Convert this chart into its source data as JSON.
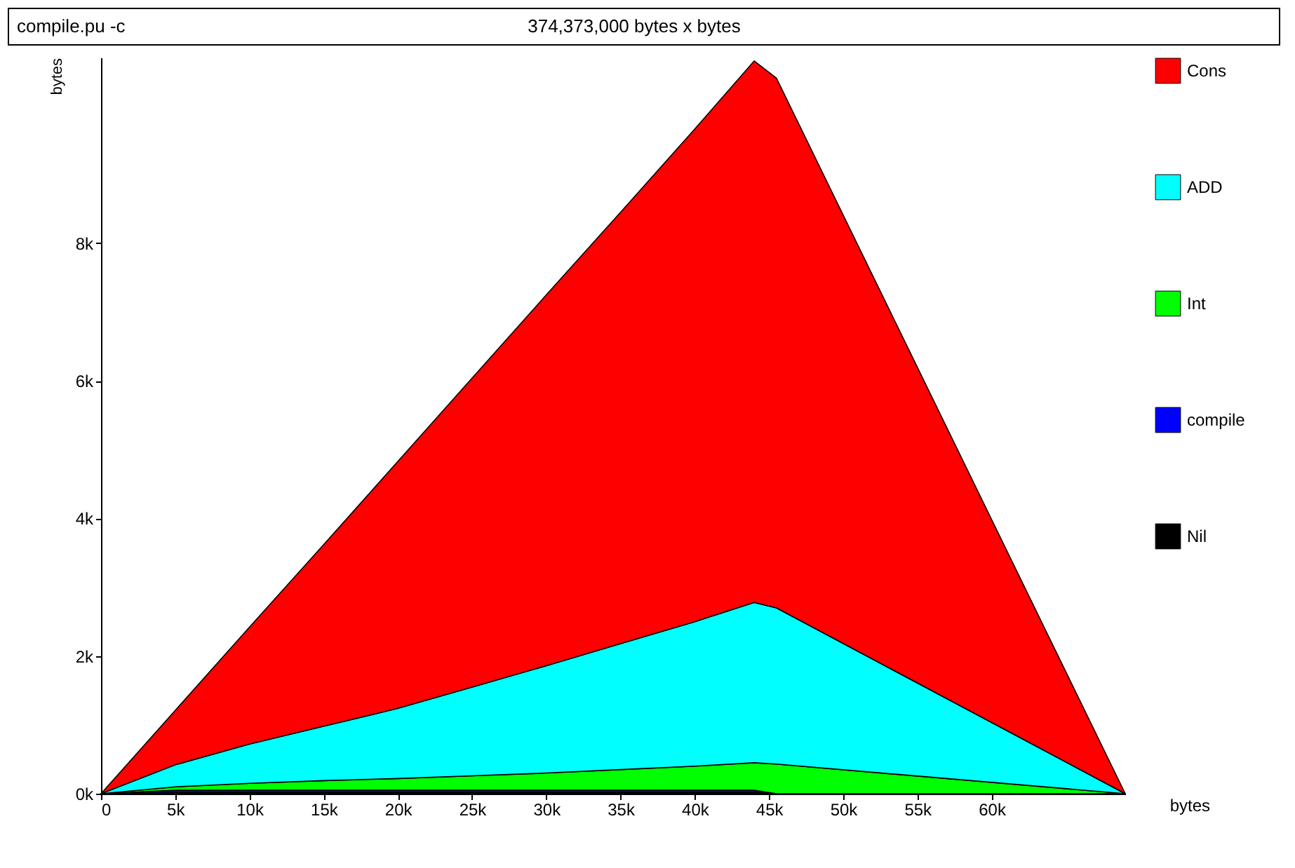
{
  "chart_data": {
    "type": "area",
    "stacked": true,
    "title": "compile.pu  -c",
    "subtitle": "374,373,000 bytes x bytes",
    "xlabel": "bytes",
    "ylabel": "bytes",
    "x": [
      0,
      5000,
      10000,
      15000,
      20000,
      25000,
      30000,
      35000,
      40000,
      44000,
      45500,
      69000
    ],
    "xlim": [
      0,
      69000
    ],
    "xticks": [
      0,
      {
        "value": 5000,
        "label": "5k"
      },
      {
        "value": 10000,
        "label": "10k"
      },
      {
        "value": 15000,
        "label": "15k"
      },
      {
        "value": 20000,
        "label": "20k"
      },
      {
        "value": 25000,
        "label": "25k"
      },
      {
        "value": 30000,
        "label": "30k"
      },
      {
        "value": 35000,
        "label": "35k"
      },
      {
        "value": 40000,
        "label": "40k"
      },
      {
        "value": 45000,
        "label": "45k"
      },
      {
        "value": 50000,
        "label": "50k"
      },
      {
        "value": 55000,
        "label": "55k"
      },
      {
        "value": 60000,
        "label": "60k"
      }
    ],
    "ylim": [
      0,
      10700
    ],
    "yticks": [
      {
        "value": 0,
        "label": "0k"
      },
      {
        "value": 2000,
        "label": "2k"
      },
      {
        "value": 4000,
        "label": "4k"
      },
      {
        "value": 6000,
        "label": "6k"
      },
      {
        "value": 8000,
        "label": "8k"
      }
    ],
    "grid": false,
    "legend": "right",
    "series": [
      {
        "name": "Nil",
        "color": "#000000",
        "values": [
          0,
          20,
          20,
          20,
          20,
          20,
          20,
          20,
          20,
          20,
          0,
          0
        ]
      },
      {
        "name": "compile",
        "color": "#0000ff",
        "values": [
          0,
          30,
          30,
          30,
          30,
          30,
          30,
          30,
          30,
          30,
          0,
          0
        ]
      },
      {
        "name": "Int",
        "color": "#00ff00",
        "values": [
          0,
          50,
          100,
          140,
          170,
          210,
          250,
          300,
          350,
          400,
          430,
          0
        ]
      },
      {
        "name": "ADD",
        "color": "#00ffff",
        "values": [
          0,
          320,
          570,
          790,
          1020,
          1290,
          1560,
          1830,
          2100,
          2330,
          2270,
          0
        ]
      },
      {
        "name": "Cons",
        "color": "#ff0000",
        "values": [
          0,
          790,
          1700,
          2640,
          3590,
          4490,
          5390,
          6270,
          7160,
          7870,
          7700,
          0
        ]
      }
    ]
  }
}
